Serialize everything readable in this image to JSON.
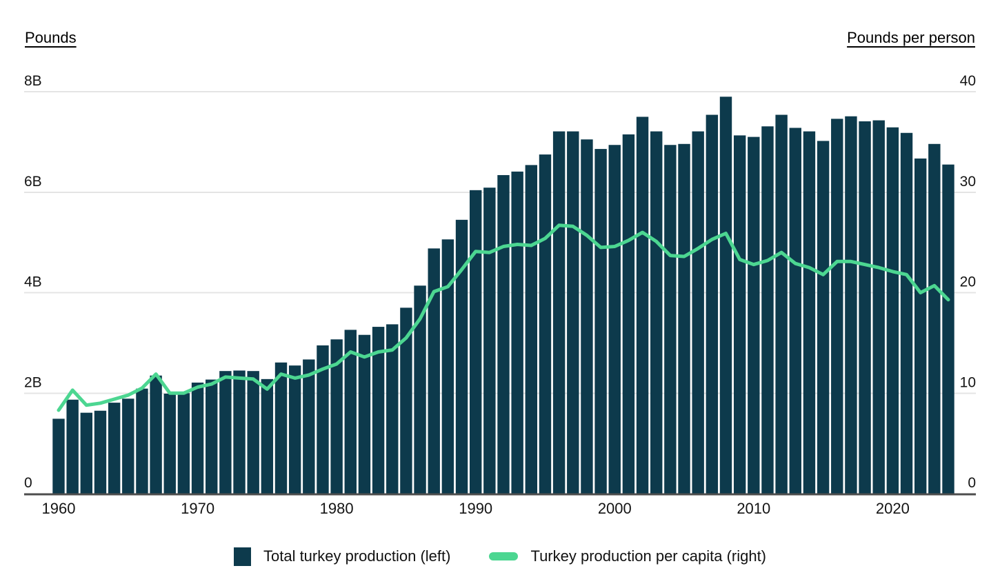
{
  "header": {
    "left_axis_title": "Pounds",
    "right_axis_title": "Pounds per person"
  },
  "legend": [
    {
      "swatch": "bar",
      "label": "Total turkey production (left)"
    },
    {
      "swatch": "line",
      "label": "Turkey production per capita (right)"
    }
  ],
  "colors": {
    "bar": "#0d3a4c",
    "line": "#4cd691",
    "grid": "#e4e4e4",
    "axis_line": "#4d4d4d",
    "text": "#141414"
  },
  "chart_data": {
    "type": "combo-bar-line",
    "title": "",
    "grid": true,
    "legend_position": "bottom",
    "x": [
      1960,
      1961,
      1962,
      1963,
      1964,
      1965,
      1966,
      1967,
      1968,
      1969,
      1970,
      1971,
      1972,
      1973,
      1974,
      1975,
      1976,
      1977,
      1978,
      1979,
      1980,
      1981,
      1982,
      1983,
      1984,
      1985,
      1986,
      1987,
      1988,
      1989,
      1990,
      1991,
      1992,
      1993,
      1994,
      1995,
      1996,
      1997,
      1998,
      1999,
      2000,
      2001,
      2002,
      2003,
      2004,
      2005,
      2006,
      2007,
      2008,
      2009,
      2010,
      2011,
      2012,
      2013,
      2014,
      2015,
      2016,
      2017,
      2018,
      2019,
      2020,
      2021,
      2022,
      2023,
      2024
    ],
    "x_ticks": [
      1960,
      1970,
      1980,
      1990,
      2000,
      2010,
      2020
    ],
    "left_axis": {
      "title": "Pounds",
      "unit": "billion pounds",
      "range": [
        0,
        8
      ],
      "ticks": [
        {
          "v": 0,
          "label": "0"
        },
        {
          "v": 2,
          "label": "2B"
        },
        {
          "v": 4,
          "label": "4B"
        },
        {
          "v": 6,
          "label": "6B"
        },
        {
          "v": 8,
          "label": "8B"
        }
      ]
    },
    "right_axis": {
      "title": "Pounds per person",
      "unit": "pounds per person",
      "range": [
        0,
        40
      ],
      "ticks": [
        {
          "v": 0,
          "label": "0"
        },
        {
          "v": 10,
          "label": "10"
        },
        {
          "v": 20,
          "label": "20"
        },
        {
          "v": 30,
          "label": "30"
        },
        {
          "v": 40,
          "label": "40"
        }
      ]
    },
    "series": [
      {
        "name": "Total turkey production (left)",
        "type": "bar",
        "axis": "left",
        "values": [
          1.49,
          1.87,
          1.61,
          1.65,
          1.81,
          1.89,
          2.09,
          2.35,
          1.99,
          2.0,
          2.21,
          2.27,
          2.44,
          2.45,
          2.44,
          2.28,
          2.61,
          2.55,
          2.67,
          2.95,
          3.07,
          3.26,
          3.16,
          3.32,
          3.37,
          3.7,
          4.14,
          4.88,
          5.06,
          5.45,
          6.04,
          6.09,
          6.34,
          6.41,
          6.54,
          6.75,
          7.21,
          7.21,
          7.05,
          6.86,
          6.94,
          7.15,
          7.5,
          7.21,
          6.94,
          6.96,
          7.21,
          7.54,
          7.9,
          7.13,
          7.1,
          7.31,
          7.54,
          7.28,
          7.21,
          7.02,
          7.46,
          7.51,
          7.41,
          7.43,
          7.29,
          7.18,
          6.67,
          6.96,
          6.55
        ]
      },
      {
        "name": "Turkey production per capita (right)",
        "type": "line",
        "axis": "right",
        "values": [
          8.3,
          10.3,
          8.8,
          9.0,
          9.4,
          9.8,
          10.5,
          11.9,
          10.0,
          10.0,
          10.6,
          10.9,
          11.6,
          11.5,
          11.4,
          10.4,
          11.9,
          11.5,
          11.8,
          12.4,
          12.9,
          14.1,
          13.6,
          14.1,
          14.3,
          15.5,
          17.4,
          20.1,
          20.6,
          22.3,
          24.1,
          24.0,
          24.6,
          24.8,
          24.7,
          25.4,
          26.7,
          26.6,
          25.7,
          24.5,
          24.6,
          25.2,
          26.0,
          25.1,
          23.7,
          23.6,
          24.4,
          25.3,
          25.9,
          23.3,
          22.8,
          23.2,
          24.0,
          22.9,
          22.5,
          21.8,
          23.1,
          23.1,
          22.8,
          22.5,
          22.1,
          21.8,
          20.0,
          20.7,
          19.3
        ]
      }
    ]
  }
}
